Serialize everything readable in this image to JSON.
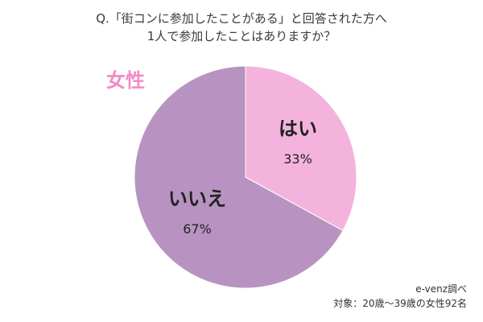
{
  "title": {
    "line1": "Q.「街コンに参加したことがある」と回答された方へ",
    "line2": "1人で参加したことはありますか？"
  },
  "group_label": "女性",
  "source": {
    "credit": "e-venz調べ",
    "sample": "対象：20歳〜39歳の女性92名"
  },
  "colors": {
    "yes": "#f4b3dc",
    "no": "#b893c1",
    "group_label": "#f08bc8"
  },
  "chart_data": {
    "type": "pie",
    "title": "Q.「街コンに参加したことがある」と回答された方へ 1人で参加したことはありますか？",
    "slices": [
      {
        "label": "はい",
        "value": 33,
        "value_label": "33%",
        "color": "#f4b3dc"
      },
      {
        "label": "いいえ",
        "value": 67,
        "value_label": "67%",
        "color": "#b893c1"
      }
    ],
    "start": "12 o'clock",
    "direction": "clockwise",
    "legend": "none"
  }
}
